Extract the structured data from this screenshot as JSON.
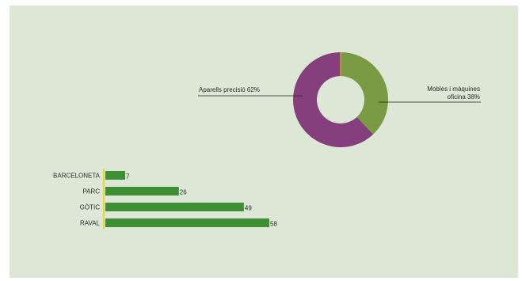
{
  "chart_data": [
    {
      "type": "pie",
      "donut": true,
      "slices": [
        {
          "label": "Mobles i màquines oficina",
          "label_lines": [
            "Mobles i màquines",
            "oficina 38%"
          ],
          "value": 38,
          "color": "#7b9a44"
        },
        {
          "label": "Aparells precisió",
          "label_lines": [
            "Aparells precisió 62%"
          ],
          "value": 62,
          "color": "#843f7c"
        }
      ],
      "start_marker_color": "#e8a23a"
    },
    {
      "type": "bar",
      "orientation": "horizontal",
      "categories": [
        "BARCELONETA",
        "PARC",
        "GÒTIC",
        "RAVAL"
      ],
      "values": [
        7,
        26,
        49,
        58
      ],
      "bar_color": "#3e8f33",
      "axis_color": "#e8d62c"
    }
  ]
}
